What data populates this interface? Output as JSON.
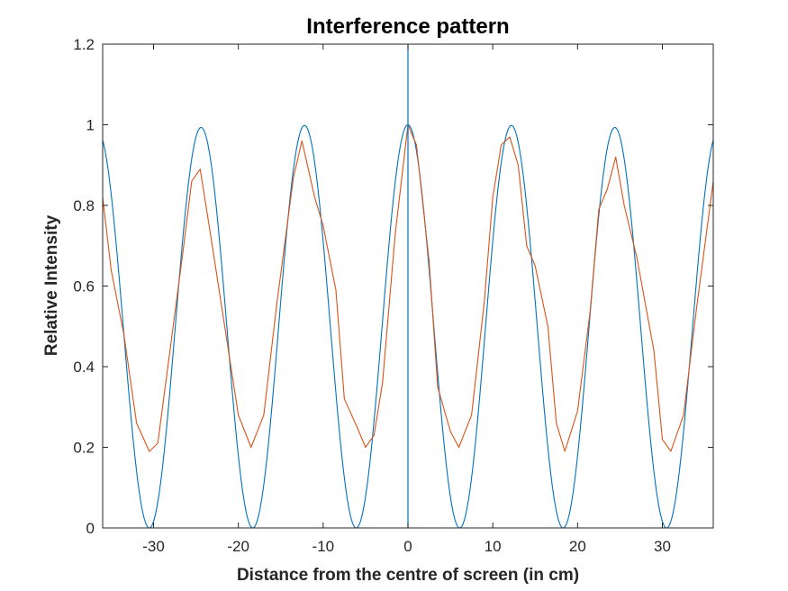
{
  "chart_data": {
    "type": "line",
    "title": "Interference pattern",
    "xlabel": "Distance from the centre of screen (in cm)",
    "ylabel": "Relative Intensity",
    "xlim": [
      -36,
      36
    ],
    "ylim": [
      0,
      1.2
    ],
    "x_ticks": [
      -30,
      -20,
      -10,
      0,
      10,
      20,
      30
    ],
    "y_ticks": [
      0,
      0.2,
      0.4,
      0.6,
      0.8,
      1,
      1.2
    ],
    "x_tick_labels": [
      "-30",
      "-20",
      "-10",
      "0",
      "10",
      "20",
      "30"
    ],
    "y_tick_labels": [
      "0",
      "0.2",
      "0.4",
      "0.6",
      "0.8",
      "1",
      "1.2"
    ],
    "grid": false,
    "box": true,
    "series": [
      {
        "kind": "theoretical cos² fringe pattern",
        "color": "#0072BD",
        "formula": "cos^2(pi*x/12.2) * (1 - 0.01*(x/30)^2)",
        "fringe_period": 12.2
      },
      {
        "kind": "measured",
        "color": "#D95319",
        "x": [
          -36,
          -35,
          -33.5,
          -32,
          -30.5,
          -29.5,
          -28,
          -26.5,
          -25.5,
          -24.5,
          -23,
          -20,
          -18.5,
          -17,
          -15.5,
          -13.5,
          -12.5,
          -11,
          -10,
          -8.5,
          -7.5,
          -6,
          -5,
          -4,
          -3,
          -1.5,
          0,
          1,
          2.5,
          3.5,
          5,
          6,
          7.5,
          9,
          10,
          11,
          12,
          13,
          14,
          15,
          16.5,
          17.5,
          18.5,
          20,
          21.5,
          22.5,
          23.5,
          24.5,
          25.5,
          27,
          29,
          30,
          31,
          32.5,
          34,
          36
        ],
        "y": [
          0.82,
          0.64,
          0.48,
          0.26,
          0.19,
          0.21,
          0.45,
          0.69,
          0.86,
          0.89,
          0.69,
          0.28,
          0.2,
          0.28,
          0.55,
          0.87,
          0.96,
          0.82,
          0.75,
          0.59,
          0.32,
          0.25,
          0.2,
          0.23,
          0.36,
          0.73,
          1.0,
          0.95,
          0.66,
          0.35,
          0.24,
          0.2,
          0.28,
          0.56,
          0.82,
          0.95,
          0.97,
          0.9,
          0.7,
          0.65,
          0.5,
          0.26,
          0.19,
          0.29,
          0.54,
          0.79,
          0.84,
          0.92,
          0.8,
          0.67,
          0.44,
          0.22,
          0.19,
          0.28,
          0.54,
          0.86
        ]
      }
    ],
    "annotations": [
      {
        "type": "vertical-line",
        "x": 0,
        "color": "#0072BD"
      }
    ]
  }
}
